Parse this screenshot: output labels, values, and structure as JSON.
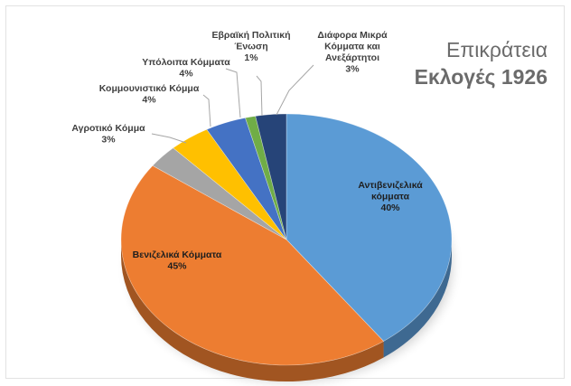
{
  "chart_data": {
    "type": "pie",
    "title_line1": "Επικράτεια",
    "title_line2": "Εκλογές 1926",
    "slices": [
      {
        "label": "Αντιβενιζελικά κόμματα",
        "pct_text": "40%",
        "value": 40,
        "color": "#5b9bd5"
      },
      {
        "label": "Βενιζελικά Κόμματα",
        "pct_text": "45%",
        "value": 45,
        "color": "#ed7d31"
      },
      {
        "label": "Αγροτικό Κόμμα",
        "pct_text": "3%",
        "value": 3,
        "color": "#a5a5a5"
      },
      {
        "label": "Κομμουνιστικό Κόμμα",
        "pct_text": "4%",
        "value": 4,
        "color": "#ffc000"
      },
      {
        "label": "Υπόλοιπα Κόμματα",
        "pct_text": "4%",
        "value": 4,
        "color": "#4472c4"
      },
      {
        "label": "Εβραϊκή Πολιτική Ένωση",
        "pct_text": "1%",
        "value": 1,
        "color": "#70ad47"
      },
      {
        "label": "Διάφορα Μικρά Κόμματα και Ανεξάρτητοι",
        "pct_text": "3%",
        "value": 3,
        "color": "#264478"
      }
    ]
  }
}
